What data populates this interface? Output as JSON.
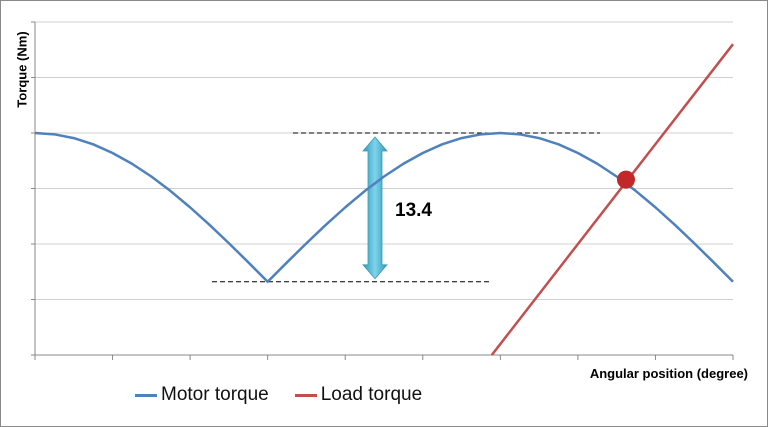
{
  "chart_data": {
    "type": "line",
    "title": "",
    "xlabel": "Angular position (degree)",
    "ylabel": "Torque (Nm)",
    "xlim": [
      0,
      9
    ],
    "ylim": [
      0,
      30
    ],
    "x_ticks_count": 10,
    "y_gridlines": [
      0,
      5,
      10,
      15,
      20,
      25,
      30
    ],
    "grid": "horizontal",
    "legend_position": "bottom",
    "series": [
      {
        "name": "Motor torque",
        "color": "#4f81bd",
        "x": [
          0,
          0.25,
          0.5,
          0.75,
          1,
          1.25,
          1.5,
          1.75,
          2,
          2.25,
          2.5,
          2.75,
          3,
          3.25,
          3.5,
          3.75,
          4,
          4.25,
          4.5,
          4.75,
          5,
          5.25,
          5.5,
          5.75,
          6,
          6.25,
          6.5,
          6.75,
          7,
          7.25,
          7.5,
          7.75,
          8,
          8.25,
          8.5,
          8.75,
          9
        ],
        "y": [
          20,
          19.88,
          19.54,
          18.98,
          18.2,
          17.23,
          16.08,
          14.76,
          13.3,
          11.73,
          10.07,
          8.35,
          6.6,
          8.35,
          10.07,
          11.73,
          13.3,
          14.76,
          16.08,
          17.23,
          18.2,
          18.98,
          19.54,
          19.88,
          20,
          19.88,
          19.54,
          18.98,
          18.2,
          17.23,
          16.08,
          14.76,
          13.3,
          11.73,
          10.07,
          8.35,
          6.6
        ]
      },
      {
        "name": "Load torque",
        "color": "#c0504d",
        "x": [
          5.89,
          9
        ],
        "y": [
          0,
          28
        ]
      }
    ],
    "annotations": {
      "max_level": 20,
      "min_level": 6.6,
      "difference_label": "13.4",
      "intersection": {
        "x": 7.62,
        "y": 15.8,
        "color": "#c0282a"
      },
      "arrow_color": "#4bacc6"
    }
  }
}
